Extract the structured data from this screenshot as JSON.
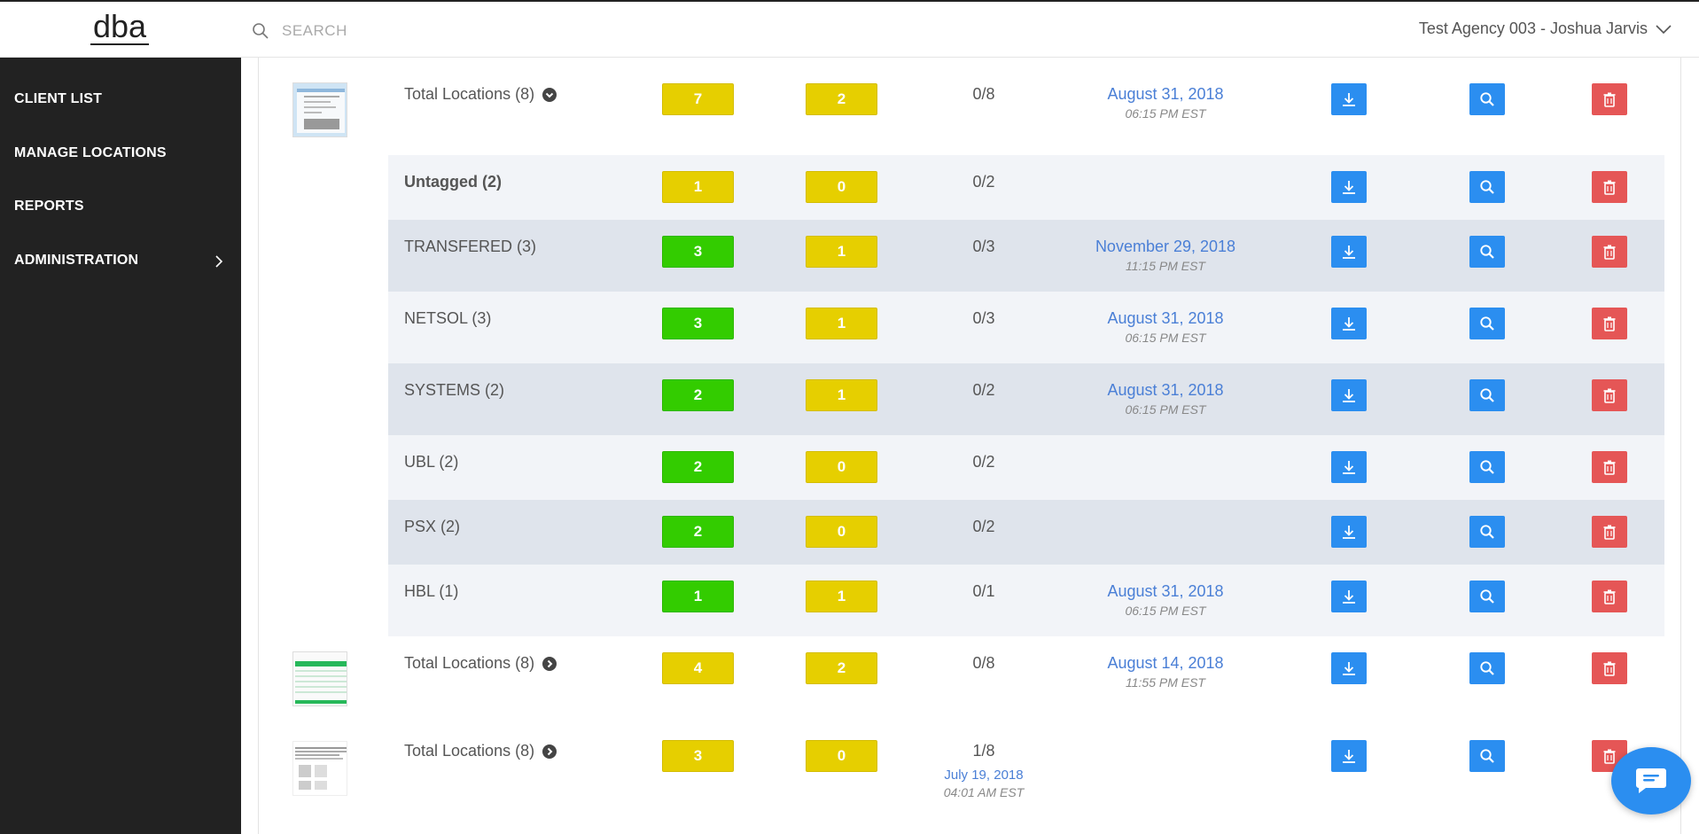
{
  "header": {
    "logo_text": "dba",
    "search_placeholder": "SEARCH",
    "user_label": "Test Agency 003 - Joshua Jarvis"
  },
  "sidebar": {
    "items": [
      {
        "label": "CLIENT LIST"
      },
      {
        "label": "MANAGE LOCATIONS"
      },
      {
        "label": "REPORTS"
      },
      {
        "label": "ADMINISTRATION"
      }
    ]
  },
  "rows": [
    {
      "label": "Total Locations (8)",
      "badge1": "7",
      "badge2": "2",
      "ratio": "0/8",
      "date": "August 31, 2018",
      "time": "06:15 PM EST"
    },
    {
      "label": "Untagged (2)",
      "badge1": "1",
      "badge2": "0",
      "ratio": "0/2",
      "date": "",
      "time": ""
    },
    {
      "label": "TRANSFERED (3)",
      "badge1": "3",
      "badge2": "1",
      "ratio": "0/3",
      "date": "November 29, 2018",
      "time": "11:15 PM EST"
    },
    {
      "label": "NETSOL (3)",
      "badge1": "3",
      "badge2": "1",
      "ratio": "0/3",
      "date": "August 31, 2018",
      "time": "06:15 PM EST"
    },
    {
      "label": "SYSTEMS (2)",
      "badge1": "2",
      "badge2": "1",
      "ratio": "0/2",
      "date": "August 31, 2018",
      "time": "06:15 PM EST"
    },
    {
      "label": "UBL (2)",
      "badge1": "2",
      "badge2": "0",
      "ratio": "0/2",
      "date": "",
      "time": ""
    },
    {
      "label": "PSX (2)",
      "badge1": "2",
      "badge2": "0",
      "ratio": "0/2",
      "date": "",
      "time": ""
    },
    {
      "label": "HBL (1)",
      "badge1": "1",
      "badge2": "1",
      "ratio": "0/1",
      "date": "August 31, 2018",
      "time": "06:15 PM EST"
    },
    {
      "label": "Total Locations (8)",
      "badge1": "4",
      "badge2": "2",
      "ratio": "0/8",
      "date": "August 14, 2018",
      "time": "11:55 PM EST"
    },
    {
      "label": "Total Locations (8)",
      "badge1": "3",
      "badge2": "0",
      "ratio": "1/8",
      "ratio_date": "July 19, 2018",
      "ratio_time": "04:01 AM EST",
      "date": "",
      "time": ""
    }
  ],
  "colors": {
    "sidebar_bg": "#222222",
    "badge_yellow": "#e6cf00",
    "badge_green": "#33cc00",
    "button_blue": "#2b8ef0",
    "button_red": "#e55656",
    "date_blue": "#4a7fd6"
  },
  "icons": [
    "search-icon",
    "chevron-down-icon",
    "chevron-right-icon",
    "circle-chevron-down-icon",
    "circle-chevron-right-icon",
    "download-icon",
    "magnify-icon",
    "trash-icon",
    "chat-icon"
  ]
}
